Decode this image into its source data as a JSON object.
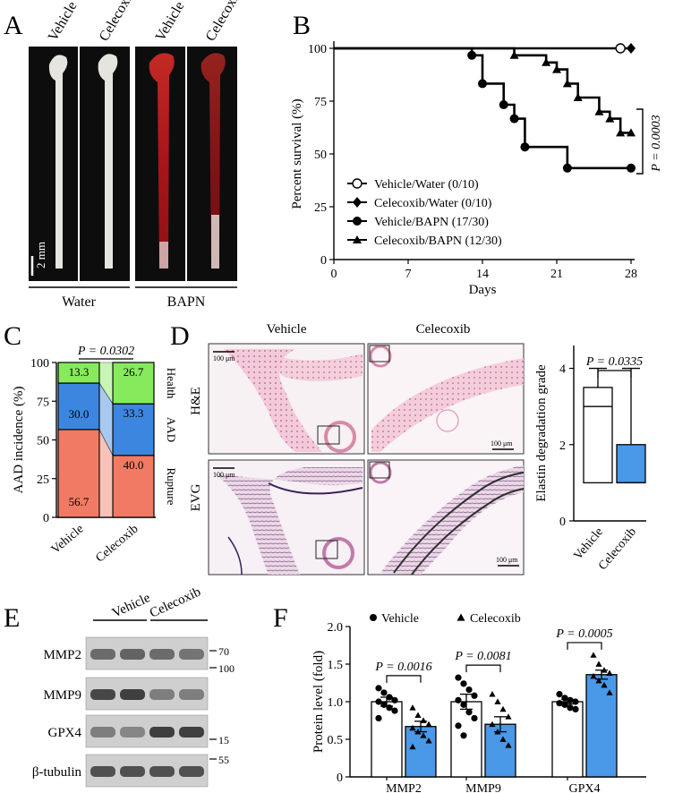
{
  "panel_letters": {
    "a": "A",
    "b": "B",
    "c": "C",
    "d": "D",
    "e": "E",
    "f": "F"
  },
  "panel_a": {
    "columns": [
      "Vehicle",
      "Celecoxib",
      "Vehicle",
      "Celecoxib"
    ],
    "scale_bar": "2 mm",
    "groups": [
      "Water",
      "BAPN"
    ],
    "colors": {
      "background": "#0d0d0d",
      "tissue": "#e6e4df",
      "blood": "#a8151a"
    }
  },
  "chart_data": [
    {
      "panel": "B",
      "type": "line",
      "xlabel": "Days",
      "ylabel": "Percent survival (%)",
      "xlim": [
        0,
        28
      ],
      "ylim": [
        0,
        100
      ],
      "xticks": [
        0,
        7,
        14,
        21,
        28
      ],
      "yticks": [
        0,
        25,
        50,
        75,
        100
      ],
      "legend_position": "bottom-right",
      "annotation": "P = 0.0003",
      "series": [
        {
          "name": "Vehicle/Water (0/10)",
          "marker": "open-circle",
          "x": [
            0,
            28
          ],
          "y": [
            100,
            100
          ]
        },
        {
          "name": "Celecoxib/Water (0/10)",
          "marker": "diamond",
          "x": [
            0,
            28
          ],
          "y": [
            100,
            100
          ]
        },
        {
          "name": "Vehicle/BAPN (17/30)",
          "marker": "circle",
          "x": [
            0,
            13,
            14,
            16,
            17,
            18,
            22,
            28
          ],
          "y": [
            100,
            96.7,
            83.3,
            73.3,
            66.7,
            53.3,
            43.3,
            43.3
          ]
        },
        {
          "name": "Celecoxib/BAPN (12/30)",
          "marker": "triangle",
          "x": [
            0,
            17,
            20,
            21,
            22,
            23,
            25,
            26,
            27,
            28
          ],
          "y": [
            100,
            96.7,
            93.3,
            90,
            83.3,
            76.7,
            70,
            66.7,
            60,
            60
          ]
        }
      ]
    },
    {
      "panel": "C",
      "type": "bar",
      "stacked": true,
      "ylabel": "AAD incidence (%)",
      "ylim": [
        0,
        100
      ],
      "yticks": [
        0,
        25,
        50,
        75,
        100
      ],
      "categories": [
        "Vehicle",
        "Celecoxib"
      ],
      "annotation": "P = 0.0302",
      "series": [
        {
          "name": "Rupture",
          "values": [
            56.7,
            40.0
          ],
          "labels": [
            "56.7",
            "40.0"
          ],
          "color": "#f07a63"
        },
        {
          "name": "AAD",
          "values": [
            30.0,
            33.3
          ],
          "labels": [
            "30.0",
            "33.3"
          ],
          "color": "#3d86e0"
        },
        {
          "name": "Health",
          "values": [
            13.3,
            26.7
          ],
          "labels": [
            "13.3",
            "26.7"
          ],
          "color": "#86ea5c"
        }
      ]
    },
    {
      "panel": "D",
      "type": "box",
      "ylabel": "Elastin degradation grade",
      "ylim": [
        0,
        4.6
      ],
      "yticks": [
        0,
        2,
        4
      ],
      "categories": [
        "Vehicle",
        "Celecoxib"
      ],
      "annotation": "P = 0.0335",
      "boxes": [
        {
          "name": "Vehicle",
          "min": 1,
          "q1": 1,
          "median": 3,
          "q3": 3.5,
          "max": 4,
          "color": "#ffffff"
        },
        {
          "name": "Celecoxib",
          "min": 1,
          "q1": 1,
          "median": 1,
          "q3": 2,
          "max": 4,
          "color": "#4a98e8"
        }
      ]
    },
    {
      "panel": "F",
      "type": "bar",
      "ylabel": "Protein level (fold)",
      "ylim": [
        0,
        2.0
      ],
      "yticks": [
        0,
        0.5,
        1.0,
        1.5,
        2.0
      ],
      "ytick_labels": [
        "0",
        "0.5",
        "1.0",
        "1.5",
        "2.0"
      ],
      "categories": [
        "MMP2",
        "MMP9",
        "GPX4"
      ],
      "legend_position": "top",
      "annotations": [
        "P = 0.0016",
        "P = 0.0081",
        "P = 0.0005"
      ],
      "series": [
        {
          "name": "Vehicle",
          "marker": "circle",
          "color": "#ffffff",
          "values": [
            1.0,
            1.0,
            1.0
          ],
          "sem": [
            0.06,
            0.1,
            0.03
          ],
          "points": [
            [
              1.18,
              1.12,
              1.06,
              1.02,
              1.0,
              0.96,
              0.92,
              0.88,
              0.78
            ],
            [
              1.32,
              1.24,
              1.16,
              1.08,
              1.02,
              0.96,
              0.86,
              0.78,
              0.68,
              0.55
            ],
            [
              1.1,
              1.05,
              1.02,
              1.0,
              0.98,
              0.96,
              0.92,
              0.9
            ]
          ]
        },
        {
          "name": "Celecoxib",
          "marker": "triangle",
          "color": "#4a98e8",
          "values": [
            0.67,
            0.7,
            1.36
          ],
          "sem": [
            0.07,
            0.1,
            0.06
          ],
          "points": [
            [
              0.92,
              0.82,
              0.75,
              0.7,
              0.65,
              0.6,
              0.55,
              0.48,
              0.4
            ],
            [
              1.1,
              1.0,
              0.9,
              0.8,
              0.7,
              0.6,
              0.5,
              0.42
            ],
            [
              1.62,
              1.5,
              1.42,
              1.38,
              1.34,
              1.28,
              1.22,
              1.12
            ]
          ]
        }
      ]
    }
  ],
  "panel_d": {
    "columns": [
      "Vehicle",
      "Celecoxib"
    ],
    "rows": [
      "H&E",
      "EVG"
    ],
    "scale_bar": "100 μm"
  },
  "panel_e": {
    "groups": [
      "Vehicle",
      "Celecoxib"
    ],
    "proteins": [
      "MMP2",
      "MMP9",
      "GPX4",
      "β-tubulin"
    ],
    "markers": [
      "70",
      "100",
      "15",
      "55"
    ]
  }
}
